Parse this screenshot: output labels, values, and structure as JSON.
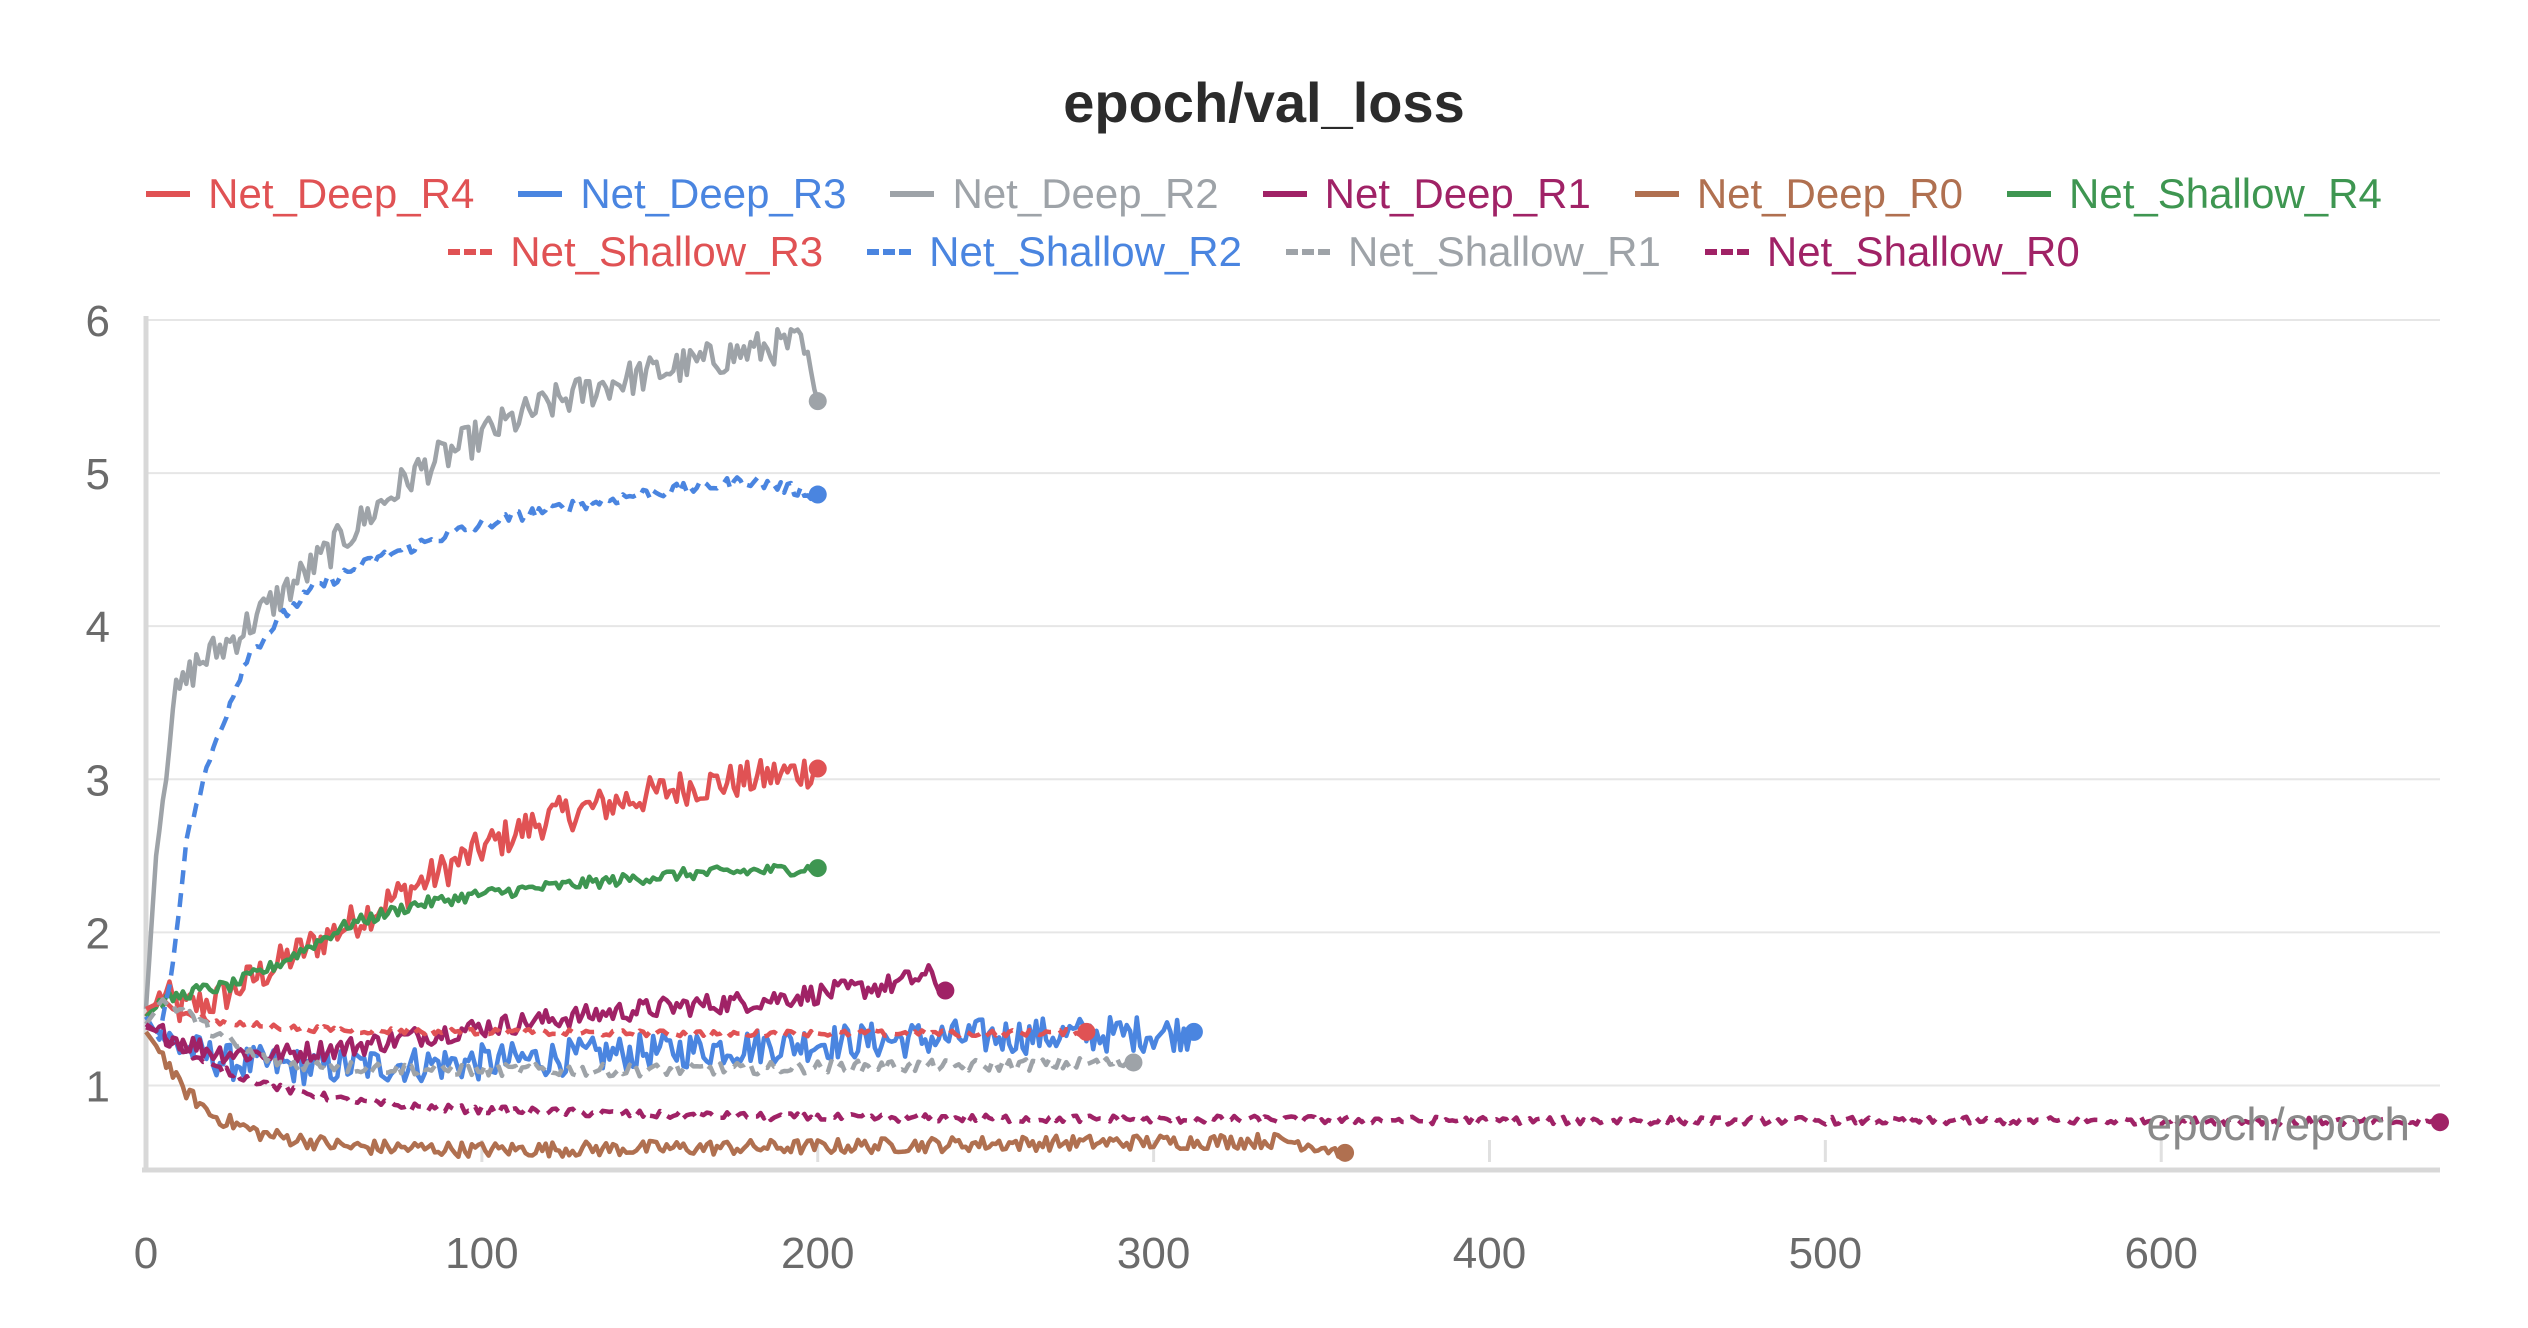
{
  "chart_data": {
    "type": "line",
    "title": "epoch/val_loss",
    "xlabel": "epoch/epoch",
    "ylabel": "",
    "xlim": [
      0,
      683
    ],
    "ylim": [
      0.5,
      6.0
    ],
    "x_ticks": [
      0,
      100,
      200,
      300,
      400,
      500,
      600
    ],
    "y_ticks": [
      1,
      2,
      3,
      4,
      5,
      6
    ],
    "grid": true,
    "legend_position": "top",
    "series": [
      {
        "name": "Net_Deep_R4",
        "color": "#e05254",
        "dash": false,
        "points": [
          [
            0,
            1.45
          ],
          [
            5,
            1.6
          ],
          [
            10,
            1.5
          ],
          [
            20,
            1.55
          ],
          [
            40,
            1.8
          ],
          [
            60,
            2.05
          ],
          [
            80,
            2.3
          ],
          [
            100,
            2.55
          ],
          [
            120,
            2.75
          ],
          [
            140,
            2.85
          ],
          [
            160,
            2.95
          ],
          [
            180,
            3.0
          ],
          [
            200,
            3.07
          ]
        ],
        "noise": 0.12,
        "end": [
          200,
          3.07
        ]
      },
      {
        "name": "Net_Deep_R3",
        "color": "#4a85e0",
        "dash": false,
        "points": [
          [
            0,
            1.4
          ],
          [
            10,
            1.25
          ],
          [
            25,
            1.15
          ],
          [
            50,
            1.12
          ],
          [
            100,
            1.15
          ],
          [
            150,
            1.22
          ],
          [
            200,
            1.28
          ],
          [
            250,
            1.32
          ],
          [
            300,
            1.34
          ],
          [
            312,
            1.35
          ]
        ],
        "noise": 0.12,
        "end": [
          312,
          1.35
        ]
      },
      {
        "name": "Net_Deep_R2",
        "color": "#9ea3a8",
        "dash": false,
        "points": [
          [
            0,
            1.5
          ],
          [
            3,
            2.5
          ],
          [
            8,
            3.5
          ],
          [
            15,
            3.75
          ],
          [
            25,
            3.9
          ],
          [
            40,
            4.2
          ],
          [
            60,
            4.6
          ],
          [
            80,
            5.0
          ],
          [
            100,
            5.25
          ],
          [
            120,
            5.45
          ],
          [
            140,
            5.6
          ],
          [
            160,
            5.7
          ],
          [
            180,
            5.8
          ],
          [
            195,
            5.85
          ],
          [
            200,
            5.47
          ]
        ],
        "noise": 0.12,
        "end": [
          200,
          5.47
        ]
      },
      {
        "name": "Net_Deep_R1",
        "color": "#a02266",
        "dash": false,
        "points": [
          [
            0,
            1.38
          ],
          [
            20,
            1.22
          ],
          [
            40,
            1.2
          ],
          [
            60,
            1.25
          ],
          [
            80,
            1.32
          ],
          [
            100,
            1.38
          ],
          [
            120,
            1.43
          ],
          [
            140,
            1.48
          ],
          [
            160,
            1.52
          ],
          [
            180,
            1.55
          ],
          [
            200,
            1.6
          ],
          [
            220,
            1.65
          ],
          [
            233,
            1.72
          ],
          [
            238,
            1.62
          ]
        ],
        "noise": 0.07,
        "end": [
          238,
          1.62
        ]
      },
      {
        "name": "Net_Deep_R0",
        "color": "#b07050",
        "dash": false,
        "points": [
          [
            0,
            1.35
          ],
          [
            5,
            1.2
          ],
          [
            10,
            1.0
          ],
          [
            20,
            0.8
          ],
          [
            35,
            0.68
          ],
          [
            60,
            0.6
          ],
          [
            100,
            0.58
          ],
          [
            150,
            0.59
          ],
          [
            200,
            0.6
          ],
          [
            250,
            0.62
          ],
          [
            300,
            0.63
          ],
          [
            340,
            0.64
          ],
          [
            350,
            0.6
          ],
          [
            357,
            0.56
          ]
        ],
        "noise": 0.05,
        "end": [
          357,
          0.56
        ]
      },
      {
        "name": "Net_Shallow_R4",
        "color": "#3e9651",
        "dash": false,
        "points": [
          [
            0,
            1.45
          ],
          [
            5,
            1.55
          ],
          [
            15,
            1.62
          ],
          [
            25,
            1.65
          ],
          [
            40,
            1.8
          ],
          [
            60,
            2.05
          ],
          [
            80,
            2.18
          ],
          [
            100,
            2.25
          ],
          [
            130,
            2.32
          ],
          [
            160,
            2.38
          ],
          [
            200,
            2.42
          ]
        ],
        "noise": 0.04,
        "end": [
          200,
          2.42
        ]
      },
      {
        "name": "Net_Shallow_R3",
        "color": "#e05254",
        "dash": true,
        "points": [
          [
            0,
            1.5
          ],
          [
            5,
            1.55
          ],
          [
            10,
            1.48
          ],
          [
            20,
            1.42
          ],
          [
            40,
            1.38
          ],
          [
            60,
            1.36
          ],
          [
            100,
            1.35
          ],
          [
            150,
            1.34
          ],
          [
            200,
            1.34
          ],
          [
            250,
            1.34
          ],
          [
            280,
            1.35
          ]
        ],
        "noise": 0.02,
        "end": [
          280,
          1.35
        ]
      },
      {
        "name": "Net_Shallow_R2",
        "color": "#4a85e0",
        "dash": true,
        "points": [
          [
            0,
            1.45
          ],
          [
            4,
            1.3
          ],
          [
            8,
            1.8
          ],
          [
            12,
            2.6
          ],
          [
            20,
            3.2
          ],
          [
            30,
            3.8
          ],
          [
            40,
            4.05
          ],
          [
            50,
            4.25
          ],
          [
            70,
            4.45
          ],
          [
            90,
            4.6
          ],
          [
            110,
            4.72
          ],
          [
            130,
            4.8
          ],
          [
            150,
            4.87
          ],
          [
            180,
            4.95
          ],
          [
            200,
            4.86
          ]
        ],
        "noise": 0.04,
        "end": [
          200,
          4.86
        ]
      },
      {
        "name": "Net_Shallow_R1",
        "color": "#9ea3a8",
        "dash": true,
        "points": [
          [
            0,
            1.4
          ],
          [
            5,
            1.55
          ],
          [
            10,
            1.5
          ],
          [
            20,
            1.35
          ],
          [
            30,
            1.22
          ],
          [
            40,
            1.15
          ],
          [
            60,
            1.12
          ],
          [
            100,
            1.1
          ],
          [
            150,
            1.1
          ],
          [
            200,
            1.12
          ],
          [
            250,
            1.13
          ],
          [
            294,
            1.15
          ]
        ],
        "noise": 0.04,
        "end": [
          294,
          1.15
        ]
      },
      {
        "name": "Net_Shallow_R0",
        "color": "#a02266",
        "dash": true,
        "points": [
          [
            0,
            1.4
          ],
          [
            10,
            1.25
          ],
          [
            20,
            1.12
          ],
          [
            40,
            0.98
          ],
          [
            60,
            0.9
          ],
          [
            80,
            0.86
          ],
          [
            100,
            0.84
          ],
          [
            150,
            0.81
          ],
          [
            200,
            0.79
          ],
          [
            300,
            0.78
          ],
          [
            400,
            0.77
          ],
          [
            500,
            0.77
          ],
          [
            600,
            0.77
          ],
          [
            683,
            0.76
          ]
        ],
        "noise": 0.025,
        "end": [
          683,
          0.76
        ]
      }
    ]
  }
}
